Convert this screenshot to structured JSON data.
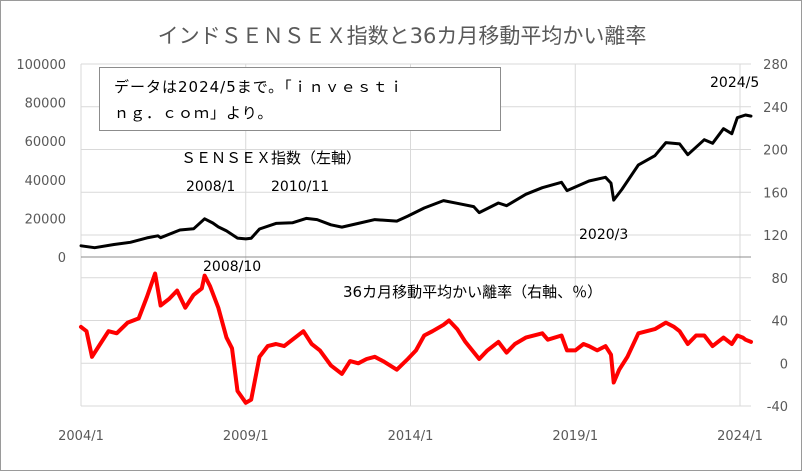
{
  "chart_data": {
    "type": "line",
    "title": "インドＳＥＮＳＥＸ指数と36カ月移動平均かい離率",
    "note_lines": [
      "データは2024/5まで。「ｉｎｖｅｓｔｉ",
      "ｎｇ．ｃｏｍ」より。"
    ],
    "x_tick_labels": [
      "2004/1",
      "2009/1",
      "2014/1",
      "2019/1",
      "2024/1"
    ],
    "x_range": [
      "2004/1",
      "2024/5"
    ],
    "y_left": {
      "min": 0,
      "max": 100000,
      "step": 20000,
      "tick_labels": [
        "0",
        "20000",
        "40000",
        "60000",
        "80000",
        "100000"
      ]
    },
    "y_right": {
      "min": -40,
      "max": 280,
      "tick_labels": [
        "-40",
        "0",
        "40",
        "80",
        "120",
        "160",
        "200",
        "240",
        "280"
      ]
    },
    "grid": true,
    "series": [
      {
        "name": "ＳＥＮＳＥＸ指数（左軸）",
        "axis": "left",
        "color": "#000000",
        "points": [
          [
            "2004/1",
            5800
          ],
          [
            "2004/6",
            4800
          ],
          [
            "2005/1",
            6500
          ],
          [
            "2005/7",
            7600
          ],
          [
            "2006/1",
            9900
          ],
          [
            "2006/5",
            11000
          ],
          [
            "2006/6",
            10000
          ],
          [
            "2007/1",
            14000
          ],
          [
            "2007/6",
            14600
          ],
          [
            "2007/10",
            19800
          ],
          [
            "2008/1",
            17600
          ],
          [
            "2008/3",
            15600
          ],
          [
            "2008/6",
            13500
          ],
          [
            "2008/10",
            9800
          ],
          [
            "2009/1",
            9400
          ],
          [
            "2009/3",
            9700
          ],
          [
            "2009/6",
            14500
          ],
          [
            "2009/12",
            17400
          ],
          [
            "2010/6",
            17700
          ],
          [
            "2010/11",
            20000
          ],
          [
            "2011/3",
            19400
          ],
          [
            "2011/8",
            16700
          ],
          [
            "2011/12",
            15500
          ],
          [
            "2012/6",
            17400
          ],
          [
            "2012/12",
            19400
          ],
          [
            "2013/8",
            18600
          ],
          [
            "2013/12",
            21200
          ],
          [
            "2014/6",
            25400
          ],
          [
            "2015/1",
            29200
          ],
          [
            "2015/6",
            27800
          ],
          [
            "2015/12",
            26100
          ],
          [
            "2016/2",
            23000
          ],
          [
            "2016/9",
            28000
          ],
          [
            "2016/12",
            26600
          ],
          [
            "2017/7",
            32500
          ],
          [
            "2018/1",
            35900
          ],
          [
            "2018/8",
            38700
          ],
          [
            "2018/10",
            34400
          ],
          [
            "2019/6",
            39400
          ],
          [
            "2019/12",
            41300
          ],
          [
            "2020/2",
            38300
          ],
          [
            "2020/3",
            29500
          ],
          [
            "2020/6",
            35000
          ],
          [
            "2020/12",
            47700
          ],
          [
            "2021/6",
            52500
          ],
          [
            "2021/10",
            59300
          ],
          [
            "2022/3",
            58600
          ],
          [
            "2022/6",
            53000
          ],
          [
            "2022/12",
            60800
          ],
          [
            "2023/3",
            58900
          ],
          [
            "2023/7",
            66500
          ],
          [
            "2023/10",
            63900
          ],
          [
            "2023/12",
            72200
          ],
          [
            "2024/3",
            73600
          ],
          [
            "2024/5",
            73000
          ]
        ]
      },
      {
        "name": "36カ月移動平均かい離率（右軸、％）",
        "axis": "right",
        "color": "#ff0000",
        "points": [
          [
            "2004/1",
            34
          ],
          [
            "2004/3",
            30
          ],
          [
            "2004/5",
            6
          ],
          [
            "2004/8",
            18
          ],
          [
            "2004/11",
            30
          ],
          [
            "2005/2",
            28
          ],
          [
            "2005/6",
            38
          ],
          [
            "2005/10",
            42
          ],
          [
            "2006/1",
            62
          ],
          [
            "2006/4",
            84
          ],
          [
            "2006/6",
            54
          ],
          [
            "2006/9",
            60
          ],
          [
            "2006/12",
            68
          ],
          [
            "2007/3",
            52
          ],
          [
            "2007/6",
            64
          ],
          [
            "2007/9",
            70
          ],
          [
            "2007/10",
            82
          ],
          [
            "2007/12",
            72
          ],
          [
            "2008/3",
            52
          ],
          [
            "2008/6",
            24
          ],
          [
            "2008/8",
            14
          ],
          [
            "2008/10",
            -26
          ],
          [
            "2009/1",
            -37
          ],
          [
            "2009/3",
            -34
          ],
          [
            "2009/6",
            6
          ],
          [
            "2009/9",
            16
          ],
          [
            "2009/12",
            18
          ],
          [
            "2010/3",
            16
          ],
          [
            "2010/6",
            22
          ],
          [
            "2010/10",
            30
          ],
          [
            "2011/1",
            18
          ],
          [
            "2011/4",
            12
          ],
          [
            "2011/8",
            -2
          ],
          [
            "2011/12",
            -10
          ],
          [
            "2012/3",
            2
          ],
          [
            "2012/6",
            0
          ],
          [
            "2012/9",
            4
          ],
          [
            "2012/12",
            6
          ],
          [
            "2013/3",
            2
          ],
          [
            "2013/8",
            -6
          ],
          [
            "2013/12",
            4
          ],
          [
            "2014/3",
            12
          ],
          [
            "2014/6",
            26
          ],
          [
            "2014/9",
            30
          ],
          [
            "2015/1",
            36
          ],
          [
            "2015/3",
            40
          ],
          [
            "2015/6",
            32
          ],
          [
            "2015/9",
            20
          ],
          [
            "2016/2",
            4
          ],
          [
            "2016/5",
            12
          ],
          [
            "2016/9",
            20
          ],
          [
            "2016/12",
            10
          ],
          [
            "2017/3",
            18
          ],
          [
            "2017/7",
            24
          ],
          [
            "2018/1",
            28
          ],
          [
            "2018/3",
            22
          ],
          [
            "2018/8",
            26
          ],
          [
            "2018/10",
            12
          ],
          [
            "2019/1",
            12
          ],
          [
            "2019/4",
            18
          ],
          [
            "2019/6",
            16
          ],
          [
            "2019/9",
            12
          ],
          [
            "2019/12",
            16
          ],
          [
            "2020/2",
            8
          ],
          [
            "2020/3",
            -18
          ],
          [
            "2020/5",
            -6
          ],
          [
            "2020/8",
            6
          ],
          [
            "2020/12",
            28
          ],
          [
            "2021/3",
            30
          ],
          [
            "2021/6",
            32
          ],
          [
            "2021/10",
            38
          ],
          [
            "2022/1",
            34
          ],
          [
            "2022/3",
            30
          ],
          [
            "2022/6",
            18
          ],
          [
            "2022/9",
            26
          ],
          [
            "2022/12",
            26
          ],
          [
            "2023/3",
            16
          ],
          [
            "2023/7",
            24
          ],
          [
            "2023/10",
            18
          ],
          [
            "2023/12",
            26
          ],
          [
            "2024/2",
            24
          ],
          [
            "2024/3",
            22
          ],
          [
            "2024/5",
            20
          ]
        ]
      }
    ],
    "annotations": [
      {
        "text": "2008/1",
        "series": 0
      },
      {
        "text": "2010/11",
        "series": 0
      },
      {
        "text": "2020/3",
        "series": 0
      },
      {
        "text": "2024/5",
        "series": 0
      },
      {
        "text": "2008/10",
        "series": 1
      }
    ]
  }
}
